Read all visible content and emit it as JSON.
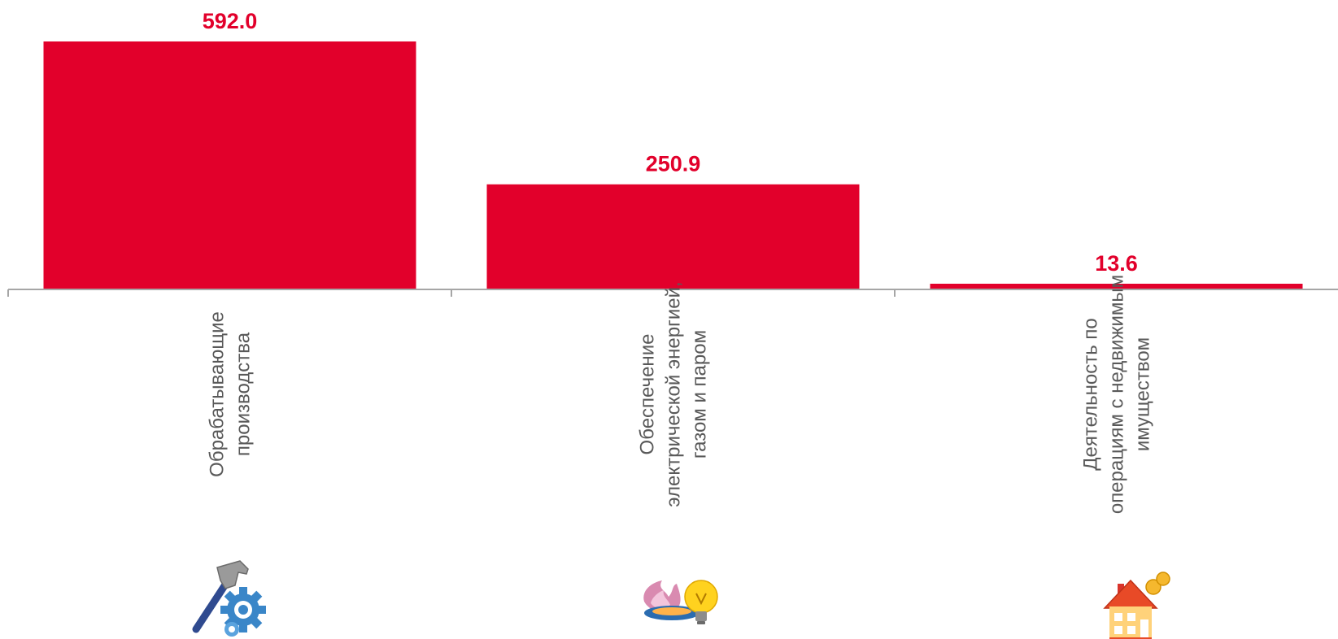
{
  "chart_data": {
    "type": "bar",
    "categories": [
      [
        "Обрабатывающие",
        "производства"
      ],
      [
        "Обеспечение",
        "электрической энергией,",
        "газом и паром"
      ],
      [
        "Деятельность по",
        "операциям с недвижимым",
        "имуществом"
      ]
    ],
    "values": [
      592.0,
      250.9,
      13.6
    ],
    "value_labels": [
      "592.0",
      "250.9",
      "13.6"
    ],
    "ylim": [
      0,
      592.0
    ],
    "grid": false,
    "legend": "none",
    "category_icons": [
      "hammer-gear-icon",
      "gas-flame-lightbulb-icon",
      "house-coins-icon"
    ]
  },
  "colors": {
    "bar": "#e2002b",
    "value_label": "#e2002b",
    "axis": "#a6a6a6",
    "category_label": "#595959"
  }
}
